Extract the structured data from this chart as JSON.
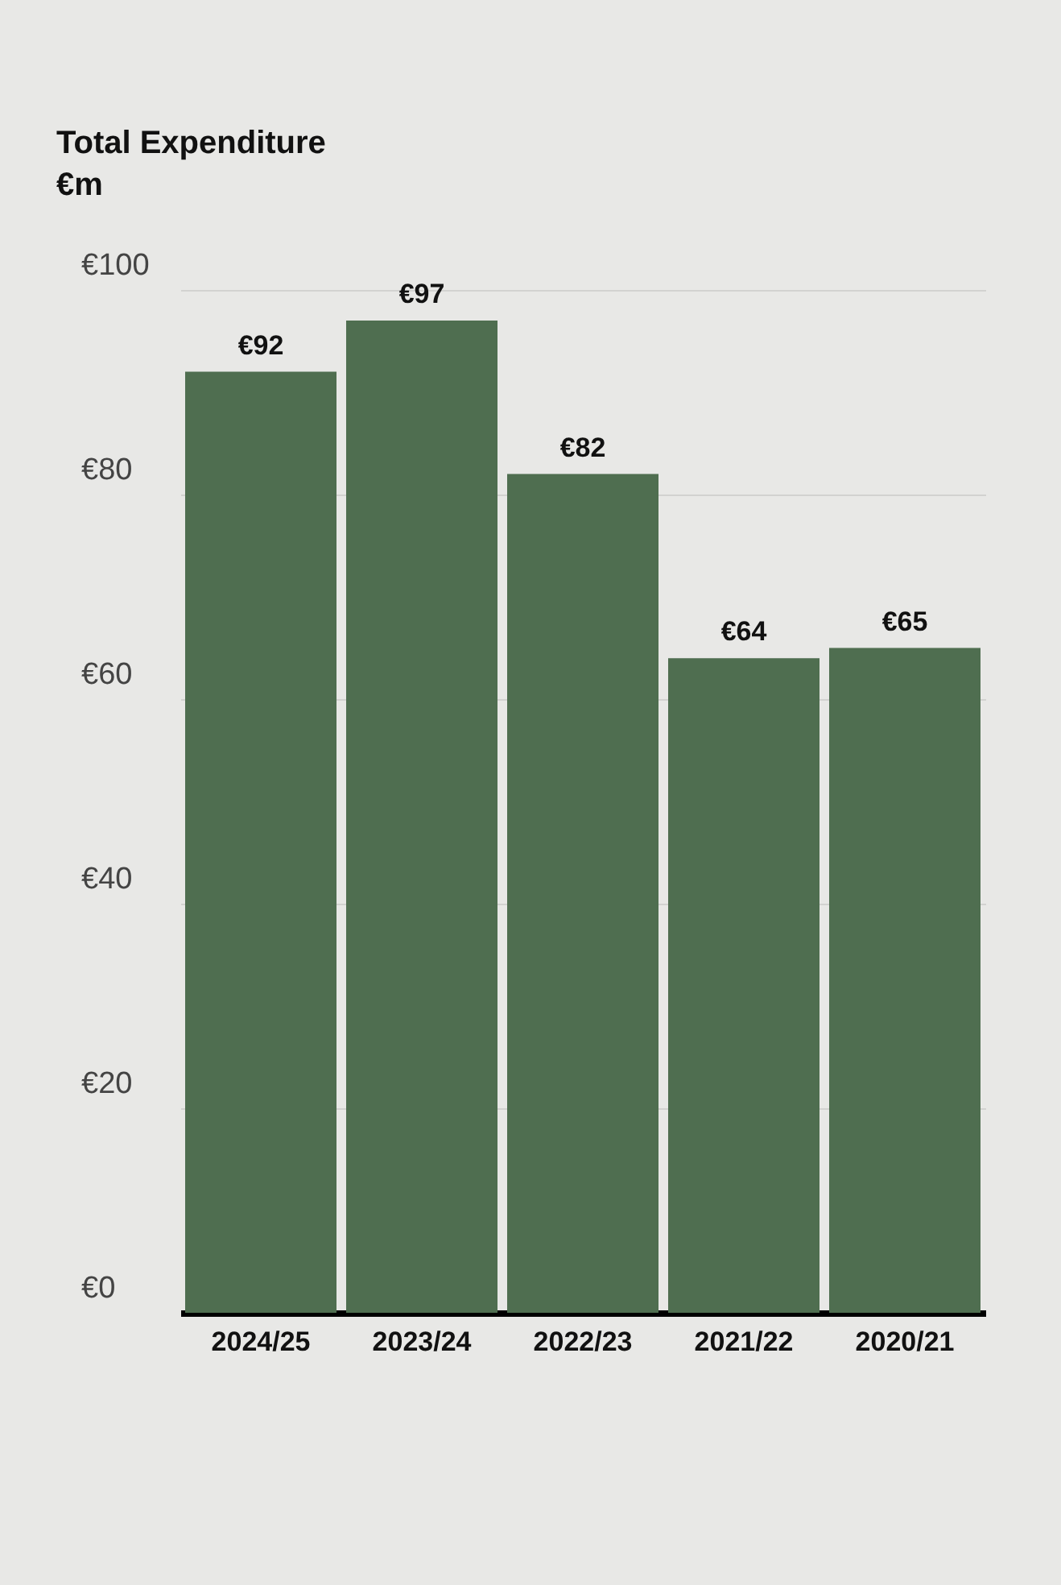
{
  "chart_data": {
    "type": "bar",
    "title": "Total Expenditure",
    "ylabel": "€m",
    "categories": [
      "2024/25",
      "2023/24",
      "2022/23",
      "2021/22",
      "2020/21"
    ],
    "values": [
      92,
      97,
      82,
      64,
      65
    ],
    "value_labels": [
      "€92",
      "€97",
      "€82",
      "€64",
      "€65"
    ],
    "color": "#4f6e50",
    "ylim": [
      0,
      100
    ],
    "yticks": [
      {
        "value": 0,
        "label": "€0"
      },
      {
        "value": 20,
        "label": "€20"
      },
      {
        "value": 40,
        "label": "€40"
      },
      {
        "value": 60,
        "label": "€60"
      },
      {
        "value": 80,
        "label": "€80"
      },
      {
        "value": 100,
        "label": "€100"
      }
    ],
    "grid": "y"
  }
}
